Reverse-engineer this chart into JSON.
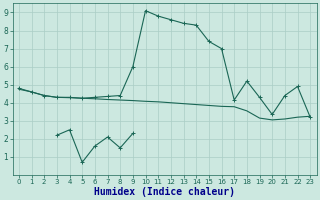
{
  "xlabel": "Humidex (Indice chaleur)",
  "x": [
    0,
    1,
    2,
    3,
    4,
    5,
    6,
    7,
    8,
    9,
    10,
    11,
    12,
    13,
    14,
    15,
    16,
    17,
    18,
    19,
    20,
    21,
    22,
    23
  ],
  "line1": [
    4.8,
    4.6,
    4.4,
    4.3,
    4.3,
    4.25,
    4.3,
    4.35,
    4.4,
    6.0,
    9.1,
    8.8,
    8.6,
    8.4,
    8.3,
    7.4,
    7.0,
    4.15,
    5.2,
    4.3,
    3.35,
    4.4,
    4.9,
    3.2
  ],
  "line2": [
    4.75,
    4.6,
    4.4,
    4.3,
    4.28,
    4.25,
    4.22,
    4.18,
    4.15,
    4.12,
    4.08,
    4.05,
    4.0,
    3.95,
    3.9,
    3.85,
    3.8,
    3.78,
    3.55,
    3.15,
    3.05,
    3.1,
    3.2,
    3.25
  ],
  "line3": [
    null,
    null,
    null,
    2.2,
    2.5,
    0.7,
    1.6,
    2.1,
    1.5,
    2.3,
    null,
    null,
    null,
    null,
    null,
    null,
    null,
    null,
    null,
    null,
    null,
    null,
    null,
    null
  ],
  "bg_color": "#cce8e0",
  "line_color": "#1a6655",
  "grid_color": "#aacec6",
  "ylim": [
    0,
    9.5
  ],
  "xlim": [
    -0.5,
    23.5
  ],
  "yticks": [
    1,
    2,
    3,
    4,
    5,
    6,
    7,
    8,
    9
  ],
  "xticks": [
    0,
    1,
    2,
    3,
    4,
    5,
    6,
    7,
    8,
    9,
    10,
    11,
    12,
    13,
    14,
    15,
    16,
    17,
    18,
    19,
    20,
    21,
    22,
    23
  ],
  "xlabel_color": "#00008b",
  "tick_color": "#1a6655"
}
